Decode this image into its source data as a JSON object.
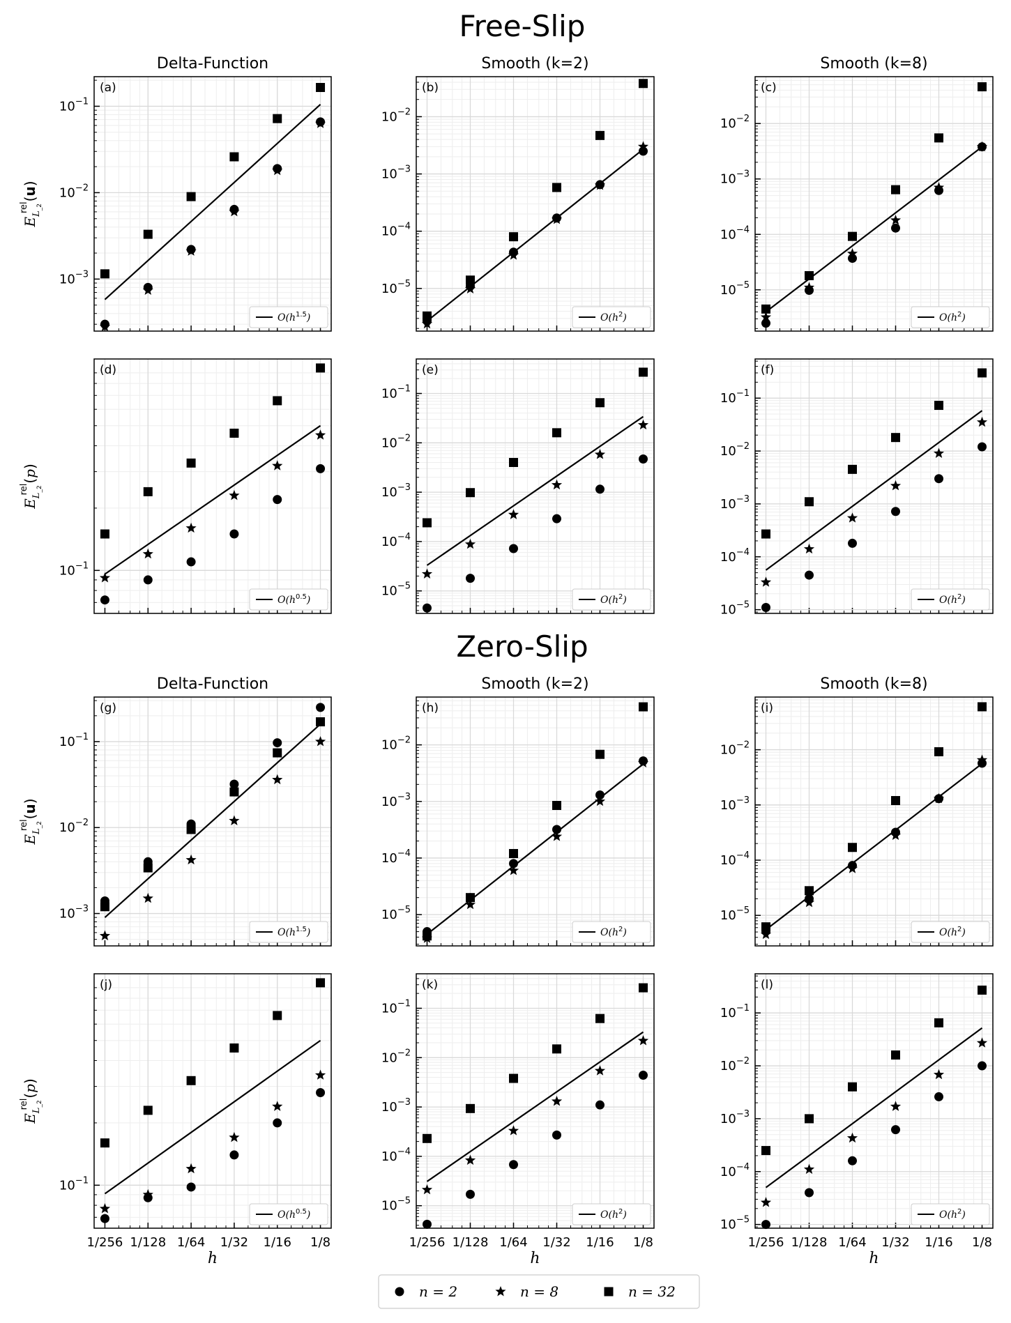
{
  "figure": {
    "section_titles": [
      "Free-Slip",
      "Zero-Slip"
    ],
    "column_titles": [
      "Delta-Function",
      "Smooth (k=2)",
      "Smooth (k=8)"
    ],
    "ylabels": {
      "velocity": "E_{L_2}^{rel}(u)",
      "pressure": "E_{L_2}^{rel}(p)"
    },
    "xlabel": "h",
    "x_tick_labels": [
      "1/256",
      "1/128",
      "1/64",
      "1/32",
      "1/16",
      "1/8"
    ],
    "legend": [
      {
        "marker": "circle",
        "label": "n = 2"
      },
      {
        "marker": "star",
        "label": "n = 8"
      },
      {
        "marker": "square",
        "label": "n = 32"
      }
    ],
    "colors": {
      "marks": "#000000",
      "grid": "#d9d9d9",
      "minor_grid": "#eeeeee",
      "background": "#ffffff"
    }
  },
  "chart_data": [
    {
      "panel": "(a)",
      "type": "scatter",
      "title": "Delta-Function",
      "section": "Free-Slip",
      "row": "velocity",
      "x": [
        0.00390625,
        0.0078125,
        0.015625,
        0.03125,
        0.0625,
        0.125
      ],
      "xscale": "log",
      "yscale": "log",
      "ylim": [
        0.00025,
        0.22
      ],
      "y_ticks": [
        "10^-3",
        "10^-2",
        "10^-1"
      ],
      "grid": true,
      "legend_position": "lower-right",
      "series": [
        {
          "name": "n = 2",
          "marker": "circle",
          "values": [
            0.0003,
            0.0008,
            0.0022,
            0.0064,
            0.019,
            0.066
          ]
        },
        {
          "name": "n = 8",
          "marker": "star",
          "values": [
            0.00028,
            0.00074,
            0.0021,
            0.006,
            0.018,
            0.063
          ]
        },
        {
          "name": "n = 32",
          "marker": "square",
          "values": [
            0.00115,
            0.0033,
            0.009,
            0.026,
            0.072,
            0.165
          ]
        }
      ],
      "reference_line": {
        "label": "O(h^{1.5})",
        "y_start": 0.00058,
        "y_end": 0.105
      }
    },
    {
      "panel": "(b)",
      "type": "scatter",
      "title": "Smooth (k=2)",
      "section": "Free-Slip",
      "row": "velocity",
      "x": [
        0.00390625,
        0.0078125,
        0.015625,
        0.03125,
        0.0625,
        0.125
      ],
      "xscale": "log",
      "yscale": "log",
      "ylim": [
        1.8e-06,
        0.05
      ],
      "y_ticks": [
        "10^-5",
        "10^-4",
        "10^-3",
        "10^-2"
      ],
      "grid": true,
      "legend_position": "lower-right",
      "series": [
        {
          "name": "n = 2",
          "marker": "circle",
          "values": [
            2.7e-06,
            1.1e-05,
            4.3e-05,
            0.00017,
            0.00065,
            0.0025
          ]
        },
        {
          "name": "n = 8",
          "marker": "star",
          "values": [
            2.4e-06,
            9.8e-06,
            3.8e-05,
            0.00016,
            0.00063,
            0.003
          ]
        },
        {
          "name": "n = 32",
          "marker": "square",
          "values": [
            3.3e-06,
            1.4e-05,
            8e-05,
            0.00058,
            0.0047,
            0.038
          ]
        }
      ],
      "reference_line": {
        "label": "O(h^2)",
        "y_start": 2.7e-06,
        "y_end": 0.0027
      }
    },
    {
      "panel": "(c)",
      "type": "scatter",
      "title": "Smooth (k=8)",
      "section": "Free-Slip",
      "row": "velocity",
      "x": [
        0.00390625,
        0.0078125,
        0.015625,
        0.03125,
        0.0625,
        0.125
      ],
      "xscale": "log",
      "yscale": "log",
      "ylim": [
        1.8e-06,
        0.07
      ],
      "y_ticks": [
        "10^-5",
        "10^-4",
        "10^-3",
        "10^-2"
      ],
      "grid": true,
      "legend_position": "lower-right",
      "series": [
        {
          "name": "n = 2",
          "marker": "circle",
          "values": [
            2.5e-06,
            9.8e-06,
            3.7e-05,
            0.00013,
            0.00062,
            0.0038
          ]
        },
        {
          "name": "n = 8",
          "marker": "star",
          "values": [
            3.2e-06,
            1.1e-05,
            4.5e-05,
            0.00018,
            0.0007,
            0.0038
          ]
        },
        {
          "name": "n = 32",
          "marker": "square",
          "values": [
            4.5e-06,
            1.8e-05,
            9.2e-05,
            0.00064,
            0.0055,
            0.046
          ]
        }
      ],
      "reference_line": {
        "label": "O(h^2)",
        "y_start": 4e-06,
        "y_end": 0.0038
      }
    },
    {
      "panel": "(d)",
      "type": "scatter",
      "title": "",
      "section": "Free-Slip",
      "row": "pressure",
      "x": [
        0.00390625,
        0.0078125,
        0.015625,
        0.03125,
        0.0625,
        0.125
      ],
      "xscale": "log",
      "yscale": "log",
      "ylim": [
        0.062,
        1.05
      ],
      "y_ticks": [
        "10^-1"
      ],
      "grid": true,
      "legend_position": "lower-right",
      "series": [
        {
          "name": "n = 2",
          "marker": "circle",
          "values": [
            0.072,
            0.09,
            0.11,
            0.15,
            0.22,
            0.31
          ]
        },
        {
          "name": "n = 8",
          "marker": "star",
          "values": [
            0.092,
            0.12,
            0.16,
            0.23,
            0.32,
            0.45
          ]
        },
        {
          "name": "n = 32",
          "marker": "square",
          "values": [
            0.15,
            0.24,
            0.33,
            0.46,
            0.66,
            0.95
          ]
        }
      ],
      "reference_line": {
        "label": "O(h^{0.5})",
        "y_start": 0.096,
        "y_end": 0.5
      }
    },
    {
      "panel": "(e)",
      "type": "scatter",
      "title": "",
      "section": "Free-Slip",
      "row": "pressure",
      "x": [
        0.00390625,
        0.0078125,
        0.015625,
        0.03125,
        0.0625,
        0.125
      ],
      "xscale": "log",
      "yscale": "log",
      "ylim": [
        3.5e-06,
        0.5
      ],
      "y_ticks": [
        "10^-5",
        "10^-4",
        "10^-3",
        "10^-2",
        "10^-1"
      ],
      "grid": true,
      "legend_position": "lower-right",
      "series": [
        {
          "name": "n = 2",
          "marker": "circle",
          "values": [
            4.5e-06,
            1.8e-05,
            7.2e-05,
            0.00029,
            0.00115,
            0.0047
          ]
        },
        {
          "name": "n = 8",
          "marker": "star",
          "values": [
            2.2e-05,
            8.8e-05,
            0.00035,
            0.0014,
            0.0058,
            0.023
          ]
        },
        {
          "name": "n = 32",
          "marker": "square",
          "values": [
            0.00024,
            0.00098,
            0.004,
            0.016,
            0.065,
            0.27
          ]
        }
      ],
      "reference_line": {
        "label": "O(h^2)",
        "y_start": 3.3e-05,
        "y_end": 0.034
      }
    },
    {
      "panel": "(f)",
      "type": "scatter",
      "title": "",
      "section": "Free-Slip",
      "row": "pressure",
      "x": [
        0.00390625,
        0.0078125,
        0.015625,
        0.03125,
        0.0625,
        0.125
      ],
      "xscale": "log",
      "yscale": "log",
      "ylim": [
        8.5e-06,
        0.55
      ],
      "y_ticks": [
        "10^-5",
        "10^-4",
        "10^-3",
        "10^-2",
        "10^-1"
      ],
      "grid": true,
      "legend_position": "lower-right",
      "series": [
        {
          "name": "n = 2",
          "marker": "circle",
          "values": [
            1.1e-05,
            4.5e-05,
            0.00018,
            0.00072,
            0.003,
            0.012
          ]
        },
        {
          "name": "n = 8",
          "marker": "star",
          "values": [
            3.3e-05,
            0.00014,
            0.00054,
            0.0022,
            0.009,
            0.035
          ]
        },
        {
          "name": "n = 32",
          "marker": "square",
          "values": [
            0.00027,
            0.0011,
            0.0045,
            0.018,
            0.073,
            0.3
          ]
        }
      ],
      "reference_line": {
        "label": "O(h^2)",
        "y_start": 5.6e-05,
        "y_end": 0.058
      }
    },
    {
      "panel": "(g)",
      "type": "scatter",
      "title": "Delta-Function",
      "section": "Zero-Slip",
      "row": "velocity",
      "x": [
        0.00390625,
        0.0078125,
        0.015625,
        0.03125,
        0.0625,
        0.125
      ],
      "xscale": "log",
      "yscale": "log",
      "ylim": [
        0.00042,
        0.33
      ],
      "y_ticks": [
        "10^-3",
        "10^-2",
        "10^-1"
      ],
      "grid": true,
      "legend_position": "lower-right",
      "series": [
        {
          "name": "n = 2",
          "marker": "circle",
          "values": [
            0.0014,
            0.004,
            0.011,
            0.032,
            0.097,
            0.25
          ]
        },
        {
          "name": "n = 8",
          "marker": "star",
          "values": [
            0.00055,
            0.0015,
            0.0042,
            0.012,
            0.036,
            0.1
          ]
        },
        {
          "name": "n = 32",
          "marker": "square",
          "values": [
            0.0012,
            0.0034,
            0.0095,
            0.026,
            0.074,
            0.17
          ]
        }
      ],
      "reference_line": {
        "label": "O(h^{1.5})",
        "y_start": 0.0009,
        "y_end": 0.16
      }
    },
    {
      "panel": "(h)",
      "type": "scatter",
      "title": "Smooth (k=2)",
      "section": "Zero-Slip",
      "row": "velocity",
      "x": [
        0.00390625,
        0.0078125,
        0.015625,
        0.03125,
        0.0625,
        0.125
      ],
      "xscale": "log",
      "yscale": "log",
      "ylim": [
        2.8e-06,
        0.07
      ],
      "y_ticks": [
        "10^-5",
        "10^-4",
        "10^-3",
        "10^-2"
      ],
      "grid": true,
      "legend_position": "lower-right",
      "series": [
        {
          "name": "n = 2",
          "marker": "circle",
          "values": [
            5e-06,
            2e-05,
            8e-05,
            0.00032,
            0.0013,
            0.0052
          ]
        },
        {
          "name": "n = 8",
          "marker": "star",
          "values": [
            3.8e-06,
            1.5e-05,
            6e-05,
            0.00024,
            0.001,
            0.0048
          ]
        },
        {
          "name": "n = 32",
          "marker": "square",
          "values": [
            4.2e-06,
            2e-05,
            0.00012,
            0.00085,
            0.0068,
            0.047
          ]
        }
      ],
      "reference_line": {
        "label": "O(h^2)",
        "y_start": 4.5e-06,
        "y_end": 0.0046
      }
    },
    {
      "panel": "(i)",
      "type": "scatter",
      "title": "Smooth (k=8)",
      "section": "Zero-Slip",
      "row": "velocity",
      "x": [
        0.00390625,
        0.0078125,
        0.015625,
        0.03125,
        0.0625,
        0.125
      ],
      "xscale": "log",
      "yscale": "log",
      "ylim": [
        2.8e-06,
        0.09
      ],
      "y_ticks": [
        "10^-5",
        "10^-4",
        "10^-3",
        "10^-2"
      ],
      "grid": true,
      "legend_position": "lower-right",
      "series": [
        {
          "name": "n = 2",
          "marker": "circle",
          "values": [
            5.2e-06,
            2e-05,
            8e-05,
            0.00032,
            0.0013,
            0.0057
          ]
        },
        {
          "name": "n = 8",
          "marker": "star",
          "values": [
            4.5e-06,
            1.7e-05,
            7e-05,
            0.00028,
            0.0013,
            0.0065
          ]
        },
        {
          "name": "n = 32",
          "marker": "square",
          "values": [
            6.2e-06,
            2.8e-05,
            0.00017,
            0.0012,
            0.0092,
            0.06
          ]
        }
      ],
      "reference_line": {
        "label": "O(h^2)",
        "y_start": 5.5e-06,
        "y_end": 0.0056
      }
    },
    {
      "panel": "(j)",
      "type": "scatter",
      "title": "",
      "section": "Zero-Slip",
      "row": "pressure",
      "x": [
        0.00390625,
        0.0078125,
        0.015625,
        0.03125,
        0.0625,
        0.125
      ],
      "xscale": "log",
      "yscale": "log",
      "ylim": [
        0.062,
        1.05
      ],
      "y_ticks": [
        "10^-1"
      ],
      "grid": true,
      "legend_position": "lower-right",
      "series": [
        {
          "name": "n = 2",
          "marker": "circle",
          "values": [
            0.069,
            0.087,
            0.098,
            0.14,
            0.2,
            0.28
          ]
        },
        {
          "name": "n = 8",
          "marker": "star",
          "values": [
            0.077,
            0.09,
            0.12,
            0.17,
            0.24,
            0.34
          ]
        },
        {
          "name": "n = 32",
          "marker": "square",
          "values": [
            0.16,
            0.23,
            0.32,
            0.46,
            0.66,
            0.95
          ]
        }
      ],
      "reference_line": {
        "label": "O(h^{0.5})",
        "y_start": 0.091,
        "y_end": 0.5
      }
    },
    {
      "panel": "(k)",
      "type": "scatter",
      "title": "",
      "section": "Zero-Slip",
      "row": "pressure",
      "x": [
        0.00390625,
        0.0078125,
        0.015625,
        0.03125,
        0.0625,
        0.125
      ],
      "xscale": "log",
      "yscale": "log",
      "ylim": [
        3.5e-06,
        0.5
      ],
      "y_ticks": [
        "10^-5",
        "10^-4",
        "10^-3",
        "10^-2",
        "10^-1"
      ],
      "grid": true,
      "legend_position": "lower-right",
      "series": [
        {
          "name": "n = 2",
          "marker": "circle",
          "values": [
            4.2e-06,
            1.7e-05,
            6.8e-05,
            0.00027,
            0.0011,
            0.0044
          ]
        },
        {
          "name": "n = 8",
          "marker": "star",
          "values": [
            2.1e-05,
            8.3e-05,
            0.00033,
            0.0013,
            0.0054,
            0.022
          ]
        },
        {
          "name": "n = 32",
          "marker": "square",
          "values": [
            0.00023,
            0.00093,
            0.0038,
            0.015,
            0.062,
            0.26
          ]
        }
      ],
      "reference_line": {
        "label": "O(h^2)",
        "y_start": 3.1e-05,
        "y_end": 0.033
      }
    },
    {
      "panel": "(l)",
      "type": "scatter",
      "title": "",
      "section": "Zero-Slip",
      "row": "pressure",
      "x": [
        0.00390625,
        0.0078125,
        0.015625,
        0.03125,
        0.0625,
        0.125
      ],
      "xscale": "log",
      "yscale": "log",
      "ylim": [
        8.5e-06,
        0.55
      ],
      "y_ticks": [
        "10^-5",
        "10^-4",
        "10^-3",
        "10^-2",
        "10^-1"
      ],
      "grid": true,
      "legend_position": "lower-right",
      "series": [
        {
          "name": "n = 2",
          "marker": "circle",
          "values": [
            1e-05,
            4e-05,
            0.00016,
            0.00062,
            0.0026,
            0.01
          ]
        },
        {
          "name": "n = 8",
          "marker": "star",
          "values": [
            2.6e-05,
            0.00011,
            0.00043,
            0.0017,
            0.0068,
            0.027
          ]
        },
        {
          "name": "n = 32",
          "marker": "square",
          "values": [
            0.00025,
            0.001,
            0.004,
            0.016,
            0.065,
            0.27
          ]
        }
      ],
      "reference_line": {
        "label": "O(h^2)",
        "y_start": 5e-05,
        "y_end": 0.052
      }
    }
  ]
}
